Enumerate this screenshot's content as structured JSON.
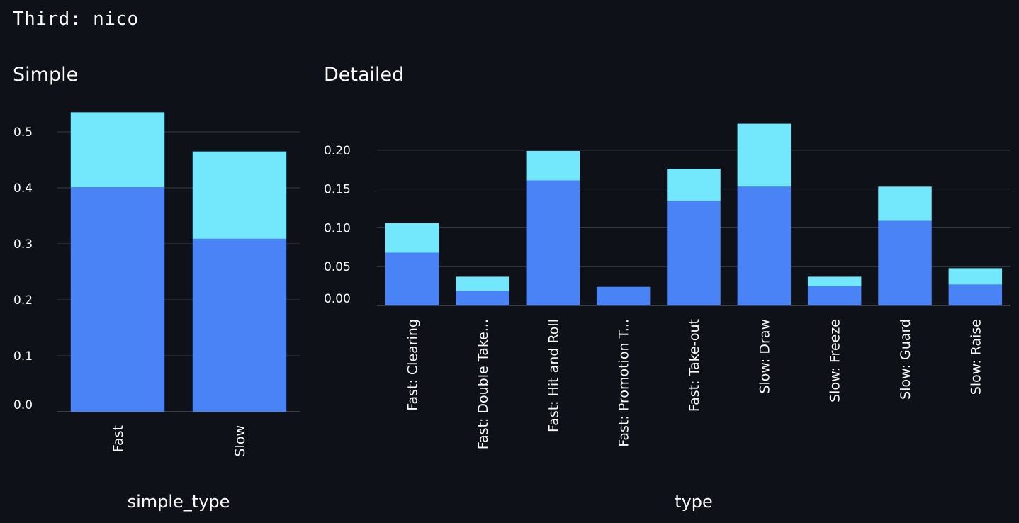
{
  "header": {
    "text": "Third: nico"
  },
  "colors": {
    "background": "#0e1117",
    "series_base": "#4a83f5",
    "series_top": "#73e8fd",
    "grid": "#3a3d46"
  },
  "chart_data": [
    {
      "type": "bar",
      "stacked": true,
      "title": "Simple",
      "xlabel": "simple_type",
      "ylabel": "",
      "ylim": [
        0,
        0.55
      ],
      "yticks": [
        0.0,
        0.1,
        0.2,
        0.3,
        0.4,
        0.5
      ],
      "ytick_labels": [
        "0.0",
        "0.1",
        "0.2",
        "0.3",
        "0.4",
        "0.5"
      ],
      "categories": [
        "Fast",
        "Slow"
      ],
      "series": [
        {
          "values": [
            0.401,
            0.309
          ],
          "color": "#4a83f5"
        },
        {
          "values": [
            0.134,
            0.156
          ],
          "color": "#73e8fd"
        }
      ],
      "grid": true,
      "legend": "none"
    },
    {
      "type": "bar",
      "stacked": true,
      "title": "Detailed",
      "xlabel": "type",
      "ylabel": "",
      "ylim": [
        0,
        0.24
      ],
      "yticks": [
        0.0,
        0.05,
        0.1,
        0.15,
        0.2
      ],
      "ytick_labels": [
        "0.00",
        "0.05",
        "0.10",
        "0.15",
        "0.20"
      ],
      "categories": [
        "Fast: Clearing",
        "Fast: Double Take...",
        "Fast: Hit and Roll",
        "Fast: Promotion T...",
        "Fast: Take-out",
        "Slow: Draw",
        "Slow: Freeze",
        "Slow: Guard",
        "Slow: Raise"
      ],
      "series": [
        {
          "values": [
            0.068,
            0.019,
            0.161,
            0.024,
            0.135,
            0.153,
            0.025,
            0.109,
            0.027
          ],
          "color": "#4a83f5"
        },
        {
          "values": [
            0.038,
            0.018,
            0.038,
            0.0,
            0.041,
            0.081,
            0.012,
            0.044,
            0.021
          ],
          "color": "#73e8fd"
        }
      ],
      "grid": true,
      "legend": "none"
    }
  ]
}
